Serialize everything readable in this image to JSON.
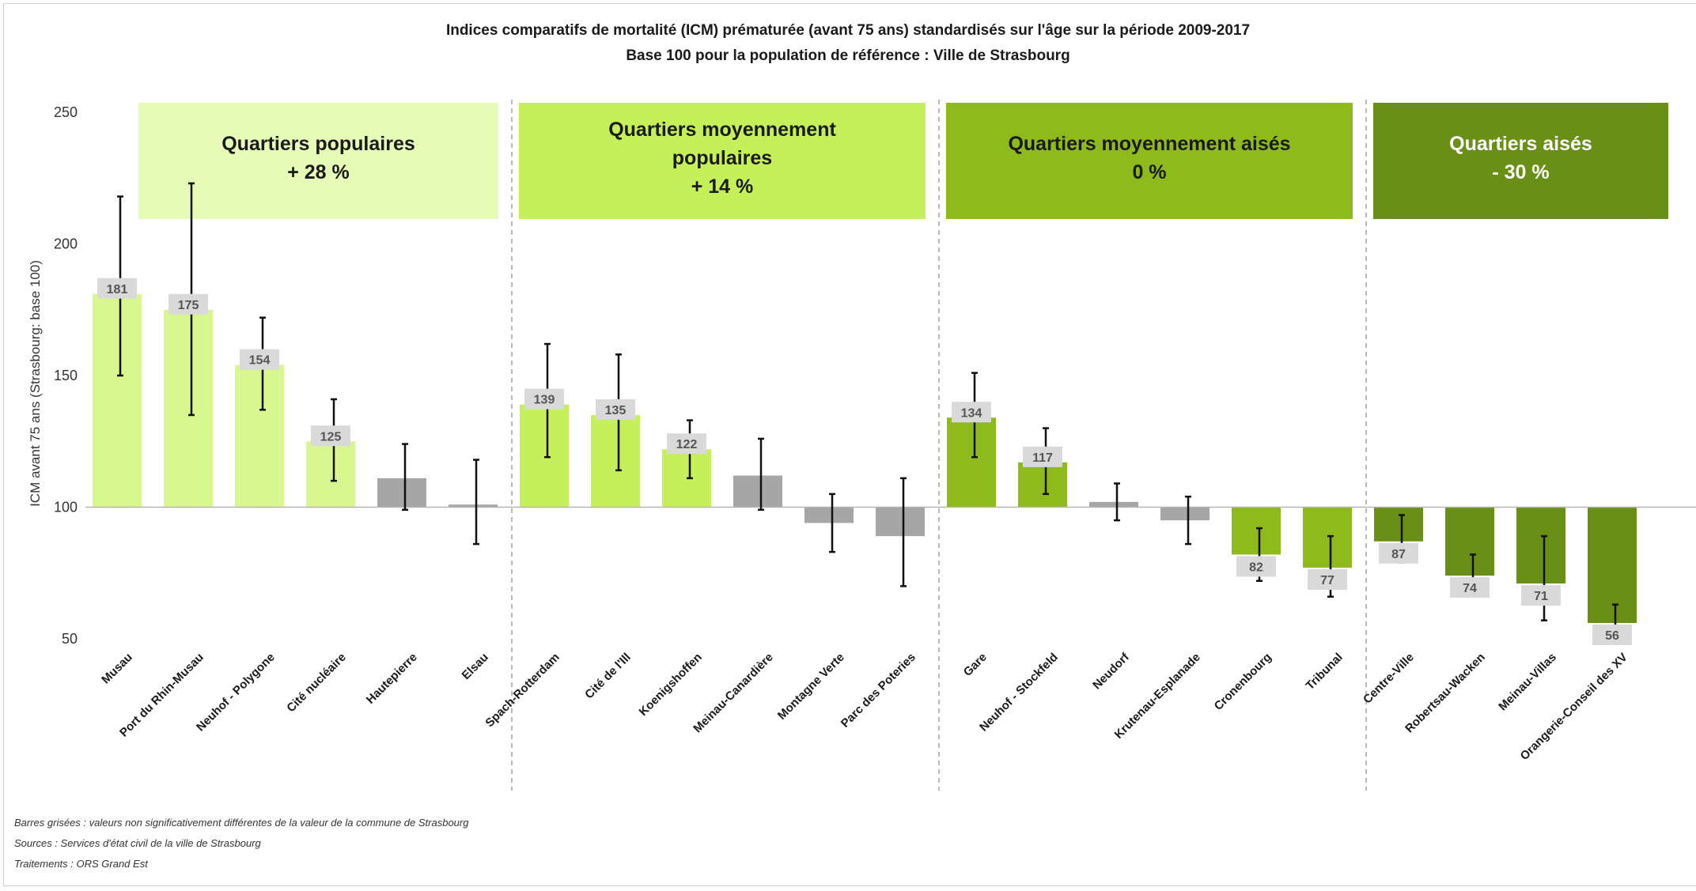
{
  "chart_data": {
    "type": "bar",
    "title": "Indices comparatifs de mortalité (ICM) prématurée (avant 75 ans) standardisés sur l'âge sur la période 2009-2017",
    "subtitle": "Base 100 pour la population de référence : Ville de Strasbourg",
    "ylabel": "ICM  avant 75 ans  (Strasbourg: base 100)",
    "ylim": [
      50,
      250
    ],
    "yticks": [
      50,
      100,
      150,
      200,
      250
    ],
    "baseline": 100,
    "colors": {
      "grey": "#a6a6a6",
      "populaires": "#d9f78f",
      "moyennement_populaires": "#c6f05a",
      "moyennement_aises": "#8fba1c",
      "aises": "#6a8f17",
      "label_box": "#d9d9d9"
    },
    "groups": [
      {
        "key": "populaires",
        "label_lines": [
          "Quartiers populaires",
          "+ 28 %"
        ],
        "box_color": "#e6fbb5",
        "text_color": "#1a1a1a",
        "categories": [
          {
            "name": "Musau",
            "value": 181,
            "low": 150,
            "high": 218,
            "significant": true,
            "label": "181"
          },
          {
            "name": "Port du Rhin-Musau",
            "value": 175,
            "low": 135,
            "high": 223,
            "significant": true,
            "label": "175"
          },
          {
            "name": "Neuhof - Polygone",
            "value": 154,
            "low": 137,
            "high": 172,
            "significant": true,
            "label": "154"
          },
          {
            "name": "Cité nucléaire",
            "value": 125,
            "low": 110,
            "high": 141,
            "significant": true,
            "label": "125"
          },
          {
            "name": "Hautepierre",
            "value": 111,
            "low": 99,
            "high": 124,
            "significant": false,
            "label": ""
          },
          {
            "name": "Elsau",
            "value": 101,
            "low": 86,
            "high": 118,
            "significant": false,
            "label": ""
          }
        ]
      },
      {
        "key": "moyennement_populaires",
        "label_lines": [
          "Quartiers moyennement",
          "populaires",
          "+ 14 %"
        ],
        "box_color": "#c6f05a",
        "text_color": "#1a1a1a",
        "categories": [
          {
            "name": "Spach-Rotterdam",
            "value": 139,
            "low": 119,
            "high": 162,
            "significant": true,
            "label": "139"
          },
          {
            "name": "Cité de l'Ill",
            "value": 135,
            "low": 114,
            "high": 158,
            "significant": true,
            "label": "135"
          },
          {
            "name": "Koenigshoffen",
            "value": 122,
            "low": 111,
            "high": 133,
            "significant": true,
            "label": "122"
          },
          {
            "name": "Meinau-Canardière",
            "value": 112,
            "low": 99,
            "high": 126,
            "significant": false,
            "label": ""
          },
          {
            "name": "Montagne Verte",
            "value": 94,
            "low": 83,
            "high": 105,
            "significant": false,
            "label": ""
          },
          {
            "name": "Parc des Poteries",
            "value": 89,
            "low": 70,
            "high": 111,
            "significant": false,
            "label": ""
          }
        ]
      },
      {
        "key": "moyennement_aises",
        "label_lines": [
          "Quartiers moyennement aisés",
          "0 %"
        ],
        "box_color": "#8fba1c",
        "text_color": "#1a1a1a",
        "categories": [
          {
            "name": "Gare",
            "value": 134,
            "low": 119,
            "high": 151,
            "significant": true,
            "label": "134"
          },
          {
            "name": "Neuhof - Stockfeld",
            "value": 117,
            "low": 105,
            "high": 130,
            "significant": true,
            "label": "117"
          },
          {
            "name": "Neudorf",
            "value": 102,
            "low": 95,
            "high": 109,
            "significant": false,
            "label": ""
          },
          {
            "name": "Krutenau-Esplanade",
            "value": 95,
            "low": 86,
            "high": 104,
            "significant": false,
            "label": ""
          },
          {
            "name": "Cronenbourg",
            "value": 82,
            "low": 72,
            "high": 92,
            "significant": true,
            "label": "82"
          },
          {
            "name": "Tribunal",
            "value": 77,
            "low": 66,
            "high": 89,
            "significant": true,
            "label": "77"
          }
        ]
      },
      {
        "key": "aises",
        "label_lines": [
          "Quartiers aisés",
          "- 30 %"
        ],
        "box_color": "#6a8f17",
        "text_color": "#ffffff",
        "categories": [
          {
            "name": "Centre-Ville",
            "value": 87,
            "low": 79,
            "high": 97,
            "significant": true,
            "label": "87"
          },
          {
            "name": "Robertsau-Wacken",
            "value": 74,
            "low": 66,
            "high": 82,
            "significant": true,
            "label": "74"
          },
          {
            "name": "Meinau-Villas",
            "value": 71,
            "low": 57,
            "high": 89,
            "significant": true,
            "label": "71"
          },
          {
            "name": "Orangerie-Conseil des XV",
            "value": 56,
            "low": 51,
            "high": 63,
            "significant": true,
            "label": "56"
          }
        ]
      }
    ]
  },
  "notes": {
    "grey_bars": "Barres grisées : valeurs non significativement différentes de la valeur de la commune de Strasbourg",
    "sources": "Sources : Services d'état civil de la ville de Strasbourg",
    "processing": "Traitements : ORS Grand Est"
  }
}
